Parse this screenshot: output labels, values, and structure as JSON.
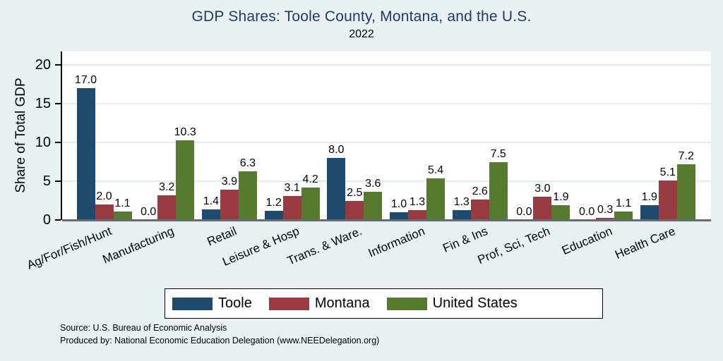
{
  "chart_data": {
    "type": "bar",
    "title": "GDP Shares: Toole County, Montana, and the U.S.",
    "subtitle": "2022",
    "xlabel": "",
    "ylabel": "Share of Total GDP",
    "ylim": [
      0,
      21.7
    ],
    "yticks": [
      0,
      5,
      10,
      15,
      20
    ],
    "grid": true,
    "legend_position": "bottom",
    "value_labels": true,
    "categories": [
      "Ag/For/Fish/Hunt",
      "Manufacturing",
      "Retail",
      "Leisure & Hosp",
      "Trans. & Ware.",
      "Information",
      "Fin & Ins",
      "Prof, Sci, Tech",
      "Education",
      "Health Care"
    ],
    "series": [
      {
        "name": "Toole",
        "color": "#1e4a6d",
        "values": [
          17.0,
          0.0,
          1.4,
          1.2,
          8.0,
          1.0,
          1.3,
          0.0,
          0.0,
          1.9
        ]
      },
      {
        "name": "Montana",
        "color": "#9a3b41",
        "values": [
          2.0,
          3.2,
          3.9,
          3.1,
          2.5,
          1.3,
          2.6,
          3.0,
          0.3,
          5.1
        ]
      },
      {
        "name": "United States",
        "color": "#567a2e",
        "values": [
          1.1,
          10.3,
          6.3,
          4.2,
          3.6,
          5.4,
          7.5,
          1.9,
          1.1,
          7.2
        ]
      }
    ]
  },
  "footnote": {
    "line1": "Source: U.S. Bureau of Economic Analysis",
    "line2": "Produced by: National Economic Education Delegation (www.NEEDelegation.org)"
  },
  "style": {
    "background": "#e9f0f2",
    "plot_background": "#ffffff",
    "title_color": "#203a61",
    "gridline_color": "#e2edf0",
    "baseline_color": "#646b6e"
  }
}
